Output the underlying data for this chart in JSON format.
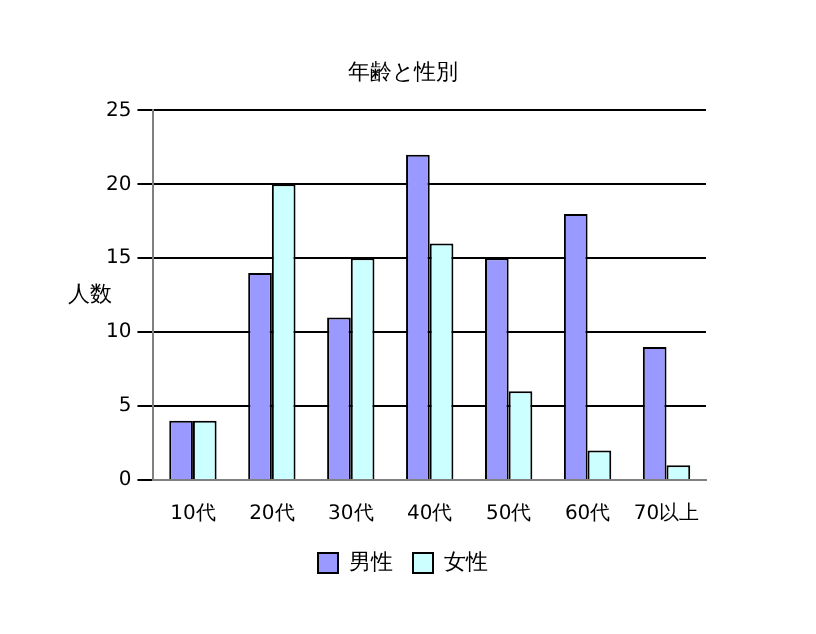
{
  "chart_data": {
    "type": "bar",
    "title": "年齢と性別",
    "ylabel": "人数",
    "categories": [
      "10代",
      "20代",
      "30代",
      "40代",
      "50代",
      "60代",
      "70以上"
    ],
    "series": [
      {
        "name": "男性",
        "color": "#9999ff",
        "values": [
          4,
          14,
          11,
          22,
          15,
          18,
          9
        ]
      },
      {
        "name": "女性",
        "color": "#ccffff",
        "values": [
          4,
          20,
          15,
          16,
          6,
          2,
          1
        ]
      }
    ],
    "ylim": [
      0,
      25
    ],
    "yticks": [
      0,
      5,
      10,
      15,
      20,
      25
    ],
    "grid": "y",
    "legend": "bottom"
  }
}
